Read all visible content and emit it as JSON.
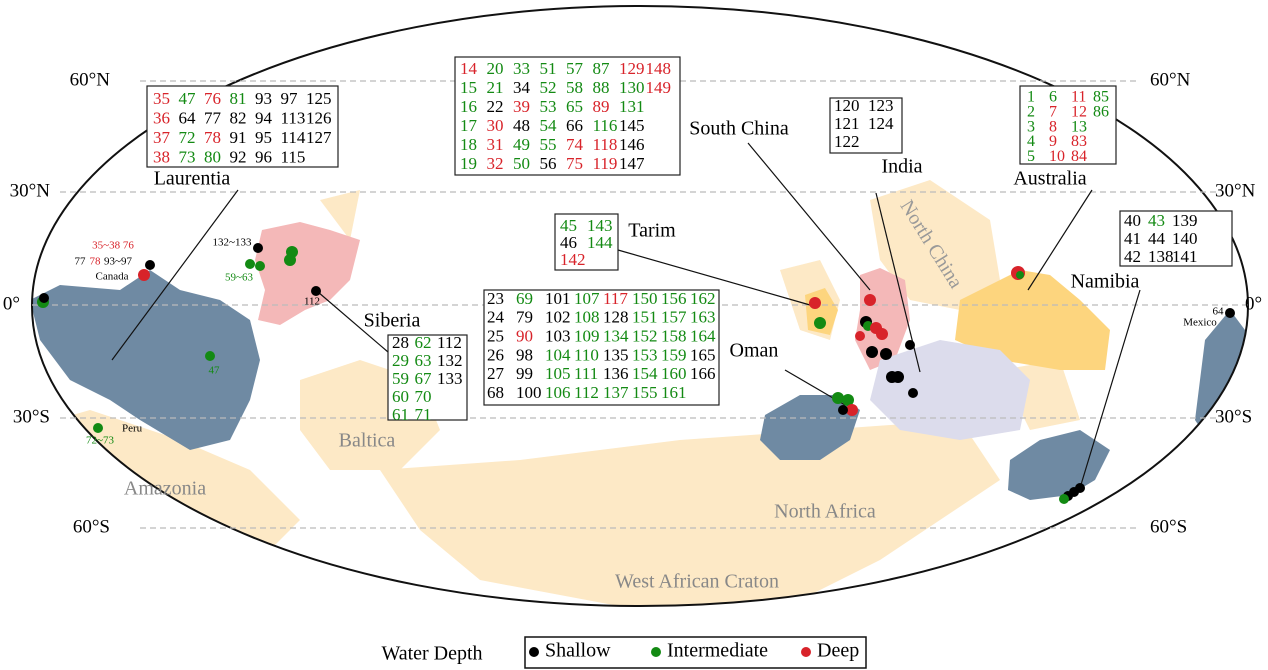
{
  "latitude_labels": [
    "60°N",
    "30°N",
    "0°",
    "30°S",
    "60°S"
  ],
  "regions": [
    "Laurentia",
    "Siberia",
    "Tarim",
    "South China",
    "India",
    "North China",
    "Australia",
    "Namibia",
    "Oman",
    "Baltica",
    "Amazonia",
    "North Africa",
    "West African Craton"
  ],
  "point_labels": [
    {
      "text": "35~38 76",
      "color": "#d8232a"
    },
    {
      "text": "77",
      "color": "#000000"
    },
    {
      "text": "78",
      "color": "#d8232a"
    },
    {
      "text": "93~97",
      "color": "#000000"
    },
    {
      "text": "Canada",
      "color": "#000000"
    },
    {
      "text": "132~133",
      "color": "#000000"
    },
    {
      "text": "59~63",
      "color": "#138a13"
    },
    {
      "text": "112",
      "color": "#000000"
    },
    {
      "text": "47",
      "color": "#138a13"
    },
    {
      "text": "Peru",
      "color": "#000000"
    },
    {
      "text": "72~73",
      "color": "#138a13"
    },
    {
      "text": "64",
      "color": "#000000"
    },
    {
      "text": "Mexico",
      "color": "#000000"
    }
  ],
  "legend": {
    "title": "Water Depth",
    "items": [
      {
        "label": "Shallow",
        "color": "#000000"
      },
      {
        "label": "Intermediate",
        "color": "#138a13"
      },
      {
        "label": "Deep",
        "color": "#d8232a"
      }
    ]
  },
  "boxes": [
    {
      "rows": [
        [
          [
            "35",
            2
          ],
          [
            "47",
            1
          ],
          [
            "76",
            2
          ],
          [
            "81",
            1
          ],
          [
            "93",
            0
          ],
          [
            "97",
            0
          ],
          [
            "125",
            0
          ]
        ],
        [
          [
            "36",
            2
          ],
          [
            "64",
            0
          ],
          [
            "77",
            0
          ],
          [
            "82",
            0
          ],
          [
            "94",
            0
          ],
          [
            "113",
            0
          ],
          [
            "126",
            0
          ]
        ],
        [
          [
            "37",
            2
          ],
          [
            "72",
            1
          ],
          [
            "78",
            2
          ],
          [
            "91",
            0
          ],
          [
            "95",
            0
          ],
          [
            "114",
            0
          ],
          [
            "127",
            0
          ]
        ],
        [
          [
            "38",
            2
          ],
          [
            "73",
            1
          ],
          [
            "80",
            1
          ],
          [
            "92",
            0
          ],
          [
            "96",
            0
          ],
          [
            "115",
            0
          ]
        ]
      ]
    },
    {
      "rows": [
        [
          [
            "14",
            2
          ],
          [
            "20",
            1
          ],
          [
            "33",
            1
          ],
          [
            "51",
            1
          ],
          [
            "57",
            1
          ],
          [
            "87",
            1
          ],
          [
            "129",
            2
          ],
          [
            "148",
            2
          ]
        ],
        [
          [
            "15",
            1
          ],
          [
            "21",
            1
          ],
          [
            "34",
            0
          ],
          [
            "52",
            1
          ],
          [
            "58",
            1
          ],
          [
            "88",
            1
          ],
          [
            "130",
            1
          ],
          [
            "149",
            2
          ]
        ],
        [
          [
            "16",
            1
          ],
          [
            "22",
            0
          ],
          [
            "39",
            2
          ],
          [
            "53",
            1
          ],
          [
            "65",
            1
          ],
          [
            "89",
            2
          ],
          [
            "131",
            1
          ]
        ],
        [
          [
            "17",
            1
          ],
          [
            "30",
            2
          ],
          [
            "48",
            0
          ],
          [
            "54",
            1
          ],
          [
            "66",
            0
          ],
          [
            "116",
            1
          ],
          [
            "145",
            0
          ]
        ],
        [
          [
            "18",
            1
          ],
          [
            "31",
            2
          ],
          [
            "49",
            1
          ],
          [
            "55",
            1
          ],
          [
            "74",
            2
          ],
          [
            "118",
            2
          ],
          [
            "146",
            0
          ]
        ],
        [
          [
            "19",
            1
          ],
          [
            "32",
            2
          ],
          [
            "50",
            1
          ],
          [
            "56",
            0
          ],
          [
            "75",
            2
          ],
          [
            "119",
            2
          ],
          [
            "147",
            0
          ]
        ]
      ]
    },
    {
      "rows": [
        [
          [
            "120",
            0
          ],
          [
            "123",
            0
          ]
        ],
        [
          [
            "121",
            0
          ],
          [
            "124",
            0
          ]
        ],
        [
          [
            "122",
            0
          ]
        ]
      ]
    },
    {
      "rows": [
        [
          [
            "1",
            1
          ],
          [
            "6",
            1
          ],
          [
            "11",
            2
          ],
          [
            "85",
            1
          ]
        ],
        [
          [
            "2",
            1
          ],
          [
            "7",
            2
          ],
          [
            "12",
            2
          ],
          [
            "86",
            1
          ]
        ],
        [
          [
            "3",
            1
          ],
          [
            "8",
            2
          ],
          [
            "13",
            1
          ]
        ],
        [
          [
            "4",
            1
          ],
          [
            "9",
            2
          ],
          [
            "83",
            2
          ]
        ],
        [
          [
            "5",
            1
          ],
          [
            "10",
            2
          ],
          [
            "84",
            2
          ]
        ]
      ]
    },
    {
      "rows": [
        [
          [
            "45",
            1
          ],
          [
            "143",
            1
          ]
        ],
        [
          [
            "46",
            0
          ],
          [
            "144",
            1
          ]
        ],
        [
          [
            "142",
            2
          ]
        ]
      ]
    },
    {
      "rows": [
        [
          [
            "40",
            0
          ],
          [
            "43",
            1
          ],
          [
            "139",
            0
          ]
        ],
        [
          [
            "41",
            0
          ],
          [
            "44",
            0
          ],
          [
            "140",
            0
          ]
        ],
        [
          [
            "42",
            0
          ],
          [
            "138",
            0
          ],
          [
            "141",
            0
          ]
        ]
      ]
    },
    {
      "rows": [
        [
          [
            "28",
            0
          ],
          [
            "62",
            1
          ],
          [
            "112",
            0
          ]
        ],
        [
          [
            "29",
            1
          ],
          [
            "63",
            1
          ],
          [
            "132",
            0
          ]
        ],
        [
          [
            "59",
            1
          ],
          [
            "67",
            1
          ],
          [
            "133",
            0
          ]
        ],
        [
          [
            "60",
            1
          ],
          [
            "70",
            1
          ]
        ],
        [
          [
            "61",
            1
          ],
          [
            "71",
            1
          ]
        ]
      ]
    },
    {
      "rows": [
        [
          [
            "23",
            0
          ],
          [
            "69",
            1
          ],
          [
            "101",
            0
          ],
          [
            "107",
            1
          ],
          [
            "117",
            2
          ],
          [
            "150",
            1
          ],
          [
            "156",
            1
          ],
          [
            "162",
            1
          ]
        ],
        [
          [
            "24",
            0
          ],
          [
            "79",
            0
          ],
          [
            "102",
            0
          ],
          [
            "108",
            1
          ],
          [
            "128",
            0
          ],
          [
            "151",
            1
          ],
          [
            "157",
            1
          ],
          [
            "163",
            1
          ]
        ],
        [
          [
            "25",
            0
          ],
          [
            "90",
            2
          ],
          [
            "103",
            0
          ],
          [
            "109",
            1
          ],
          [
            "134",
            1
          ],
          [
            "152",
            1
          ],
          [
            "158",
            1
          ],
          [
            "164",
            1
          ]
        ],
        [
          [
            "26",
            0
          ],
          [
            "98",
            0
          ],
          [
            "104",
            1
          ],
          [
            "110",
            1
          ],
          [
            "135",
            0
          ],
          [
            "153",
            1
          ],
          [
            "159",
            1
          ],
          [
            "165",
            0
          ]
        ],
        [
          [
            "27",
            0
          ],
          [
            "99",
            0
          ],
          [
            "105",
            1
          ],
          [
            "111",
            1
          ],
          [
            "136",
            0
          ],
          [
            "154",
            1
          ],
          [
            "160",
            1
          ],
          [
            "166",
            0
          ]
        ],
        [
          [
            "68",
            0
          ],
          [
            "100",
            0
          ],
          [
            "106",
            1
          ],
          [
            "112",
            1
          ],
          [
            "137",
            1
          ],
          [
            "155",
            1
          ],
          [
            "161",
            1
          ]
        ]
      ]
    }
  ]
}
